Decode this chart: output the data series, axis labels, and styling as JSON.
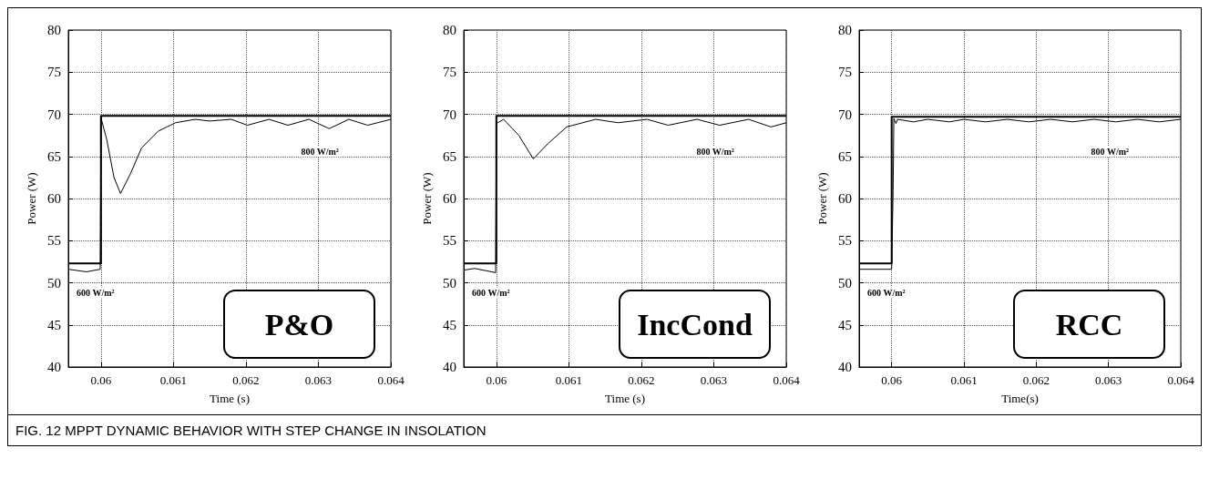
{
  "chart_data": [
    {
      "type": "line",
      "title": "P&O",
      "xlabel": "Time (s)",
      "ylabel": "Power (W)",
      "xlim": [
        0.05955,
        0.064
      ],
      "xticks": [
        0.06,
        0.061,
        0.062,
        0.063,
        0.064
      ],
      "ylim": [
        40,
        80
      ],
      "yticks": [
        40,
        45,
        50,
        55,
        60,
        65,
        70,
        75,
        80
      ],
      "grid": true,
      "marker": "none",
      "line_style": "solid",
      "series": [
        {
          "color": "#000000",
          "x": [
            0.05955,
            0.06,
            0.06,
            0.064
          ],
          "values": [
            52.3,
            52.3,
            69.8,
            69.8
          ]
        },
        {
          "color": "#000000",
          "x": [
            0.05955,
            0.0598,
            0.05999,
            0.06,
            0.06008,
            0.06018,
            0.06027,
            0.06041,
            0.06056,
            0.06079,
            0.06103,
            0.0613,
            0.0615,
            0.0618,
            0.06202,
            0.06232,
            0.06258,
            0.06287,
            0.06315,
            0.06342,
            0.06368,
            0.064
          ],
          "values": [
            51.6,
            51.3,
            51.6,
            69.6,
            67.0,
            62.5,
            60.6,
            63.0,
            66.0,
            68.0,
            69.0,
            69.4,
            69.2,
            69.4,
            68.7,
            69.4,
            68.7,
            69.4,
            68.3,
            69.4,
            68.7,
            69.4
          ]
        }
      ],
      "annotations": [
        "600 W/m²",
        "800 W/m²",
        "FIG. 12  MPPT DYNAMIC BEHAVIOR WITH STEP CHANGE IN INSOLATION"
      ]
    },
    {
      "type": "line",
      "title": "IncCond",
      "xlabel": "Time (s)",
      "ylabel": "Power (W)",
      "xlim": [
        0.05955,
        0.064
      ],
      "xticks": [
        0.06,
        0.061,
        0.062,
        0.063,
        0.064
      ],
      "ylim": [
        40,
        80
      ],
      "yticks": [
        40,
        45,
        50,
        55,
        60,
        65,
        70,
        75,
        80
      ],
      "grid": true,
      "marker": "none",
      "line_style": "solid",
      "series": [
        {
          "color": "#000000",
          "x": [
            0.05955,
            0.06,
            0.06,
            0.064
          ],
          "values": [
            52.3,
            52.3,
            69.8,
            69.8
          ]
        },
        {
          "color": "#000000",
          "x": [
            0.05955,
            0.0597,
            0.05999,
            0.06,
            0.0601,
            0.06031,
            0.06051,
            0.06071,
            0.06097,
            0.06137,
            0.06168,
            0.06208,
            0.06237,
            0.06277,
            0.06308,
            0.06348,
            0.06379,
            0.064
          ],
          "values": [
            51.5,
            51.7,
            51.2,
            68.9,
            69.4,
            67.5,
            64.7,
            66.5,
            68.5,
            69.4,
            69.0,
            69.4,
            68.7,
            69.4,
            68.7,
            69.4,
            68.5,
            69.0
          ]
        }
      ],
      "annotations": [
        "600 W/m²",
        "800 W/m²"
      ]
    },
    {
      "type": "line",
      "title": "RCC",
      "xlabel": "Time(s)",
      "ylabel": "Power (W)",
      "xlim": [
        0.05955,
        0.064
      ],
      "xticks": [
        0.06,
        0.061,
        0.062,
        0.063,
        0.064
      ],
      "ylim": [
        40,
        80
      ],
      "yticks": [
        40,
        45,
        50,
        55,
        60,
        65,
        70,
        75,
        80
      ],
      "grid": true,
      "marker": "none",
      "line_style": "solid",
      "series": [
        {
          "color": "#000000",
          "x": [
            0.05955,
            0.06,
            0.06,
            0.064
          ],
          "values": [
            52.3,
            52.3,
            69.7,
            69.7
          ]
        },
        {
          "color": "#000000",
          "x": [
            0.05955,
            0.06,
            0.06002,
            0.06003,
            0.06006,
            0.06008,
            0.0603,
            0.0605,
            0.0608,
            0.061,
            0.0613,
            0.0616,
            0.0619,
            0.0622,
            0.0625,
            0.0628,
            0.0631,
            0.0634,
            0.0637,
            0.064
          ],
          "values": [
            51.6,
            51.6,
            61.0,
            69.5,
            68.9,
            69.4,
            69.1,
            69.4,
            69.1,
            69.4,
            69.1,
            69.4,
            69.1,
            69.4,
            69.1,
            69.4,
            69.1,
            69.4,
            69.1,
            69.4
          ]
        }
      ],
      "annotations": [
        "600 W/m²",
        "800 W/m²"
      ]
    }
  ]
}
